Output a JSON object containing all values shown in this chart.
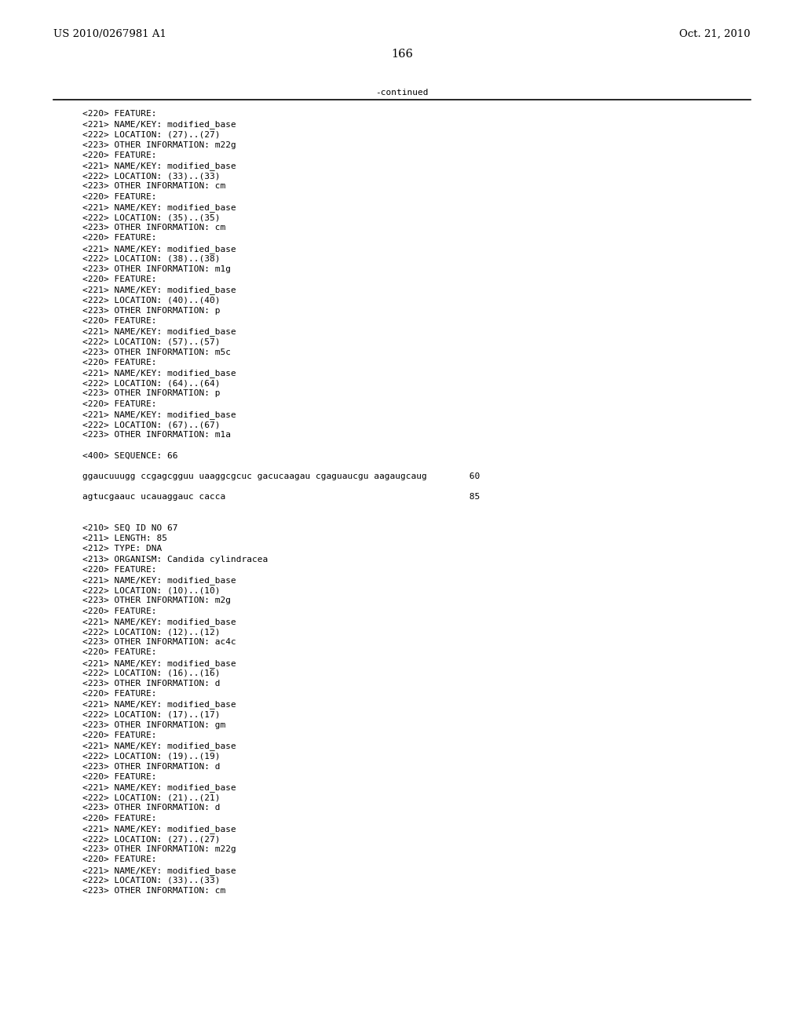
{
  "patent_left": "US 2010/0267981 A1",
  "patent_right": "Oct. 21, 2010",
  "page_number": "166",
  "continued_text": "-continued",
  "bg_color": "#ffffff",
  "text_color": "#000000",
  "font_size": 8.0,
  "header_font_size": 9.5,
  "lines": [
    "<220> FEATURE:",
    "<221> NAME/KEY: modified_base",
    "<222> LOCATION: (27)..(27)",
    "<223> OTHER INFORMATION: m22g",
    "<220> FEATURE:",
    "<221> NAME/KEY: modified_base",
    "<222> LOCATION: (33)..(33)",
    "<223> OTHER INFORMATION: cm",
    "<220> FEATURE:",
    "<221> NAME/KEY: modified_base",
    "<222> LOCATION: (35)..(35)",
    "<223> OTHER INFORMATION: cm",
    "<220> FEATURE:",
    "<221> NAME/KEY: modified_base",
    "<222> LOCATION: (38)..(38)",
    "<223> OTHER INFORMATION: m1g",
    "<220> FEATURE:",
    "<221> NAME/KEY: modified_base",
    "<222> LOCATION: (40)..(40)",
    "<223> OTHER INFORMATION: p",
    "<220> FEATURE:",
    "<221> NAME/KEY: modified_base",
    "<222> LOCATION: (57)..(57)",
    "<223> OTHER INFORMATION: m5c",
    "<220> FEATURE:",
    "<221> NAME/KEY: modified_base",
    "<222> LOCATION: (64)..(64)",
    "<223> OTHER INFORMATION: p",
    "<220> FEATURE:",
    "<221> NAME/KEY: modified_base",
    "<222> LOCATION: (67)..(67)",
    "<223> OTHER INFORMATION: m1a",
    "",
    "<400> SEQUENCE: 66",
    "",
    "ggaucuuugg ccgagcgguu uaaggcgcuc gacucaagau cgaguaucgu aagaugcaug        60",
    "",
    "agtucgaauc ucauaggauc cacca                                              85",
    "",
    "",
    "<210> SEQ ID NO 67",
    "<211> LENGTH: 85",
    "<212> TYPE: DNA",
    "<213> ORGANISM: Candida cylindracea",
    "<220> FEATURE:",
    "<221> NAME/KEY: modified_base",
    "<222> LOCATION: (10)..(10)",
    "<223> OTHER INFORMATION: m2g",
    "<220> FEATURE:",
    "<221> NAME/KEY: modified_base",
    "<222> LOCATION: (12)..(12)",
    "<223> OTHER INFORMATION: ac4c",
    "<220> FEATURE:",
    "<221> NAME/KEY: modified_base",
    "<222> LOCATION: (16)..(16)",
    "<223> OTHER INFORMATION: d",
    "<220> FEATURE:",
    "<221> NAME/KEY: modified_base",
    "<222> LOCATION: (17)..(17)",
    "<223> OTHER INFORMATION: gm",
    "<220> FEATURE:",
    "<221> NAME/KEY: modified_base",
    "<222> LOCATION: (19)..(19)",
    "<223> OTHER INFORMATION: d",
    "<220> FEATURE:",
    "<221> NAME/KEY: modified_base",
    "<222> LOCATION: (21)..(21)",
    "<223> OTHER INFORMATION: d",
    "<220> FEATURE:",
    "<221> NAME/KEY: modified_base",
    "<222> LOCATION: (27)..(27)",
    "<223> OTHER INFORMATION: m22g",
    "<220> FEATURE:",
    "<221> NAME/KEY: modified_base",
    "<222> LOCATION: (33)..(33)",
    "<223> OTHER INFORMATION: cm"
  ]
}
